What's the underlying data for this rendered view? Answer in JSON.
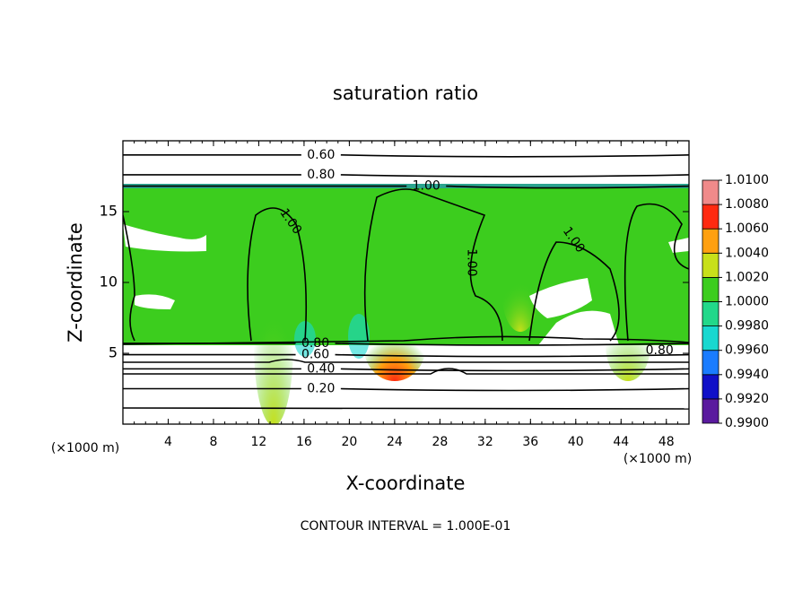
{
  "chart_data": {
    "type": "contour",
    "title": "saturation ratio",
    "x_label": "X-coordinate",
    "y_label": "Z-coordinate",
    "x_unit": "(×1000 m)",
    "y_unit": "(×1000 m)",
    "footer": "CONTOUR INTERVAL = 1.000E-01",
    "xlim": [
      0,
      50
    ],
    "ylim": [
      0,
      20
    ],
    "xticks": [
      4,
      8,
      12,
      16,
      20,
      24,
      28,
      32,
      36,
      40,
      44,
      48
    ],
    "yticks": [
      5,
      10,
      15
    ],
    "colorbar": {
      "ticks": [
        {
          "value": 0.99,
          "label": "0.9900"
        },
        {
          "value": 0.992,
          "label": "0.9920"
        },
        {
          "value": 0.994,
          "label": "0.9940"
        },
        {
          "value": 0.996,
          "label": "0.9960"
        },
        {
          "value": 0.998,
          "label": "0.9980"
        },
        {
          "value": 1.0,
          "label": "1.0000"
        },
        {
          "value": 1.002,
          "label": "1.0020"
        },
        {
          "value": 1.004,
          "label": "1.0040"
        },
        {
          "value": 1.006,
          "label": "1.0060"
        },
        {
          "value": 1.008,
          "label": "1.0080"
        },
        {
          "value": 1.01,
          "label": "1.0100"
        }
      ],
      "colors": [
        "#5a1a9e",
        "#1010c8",
        "#1a7cff",
        "#18d8d0",
        "#22d88a",
        "#3ccd1e",
        "#c8e01a",
        "#ffa010",
        "#ff2a10",
        "#f08a8a"
      ]
    },
    "contours": [
      {
        "level": 0.6,
        "label": "0.60",
        "x": 17.5,
        "z": 19.0
      },
      {
        "level": 0.8,
        "label": "0.80",
        "x": 17.5,
        "z": 17.6
      },
      {
        "level": 1.0,
        "label": "1.00",
        "x": 26.8,
        "z": 16.8
      },
      {
        "level": 0.8,
        "label": "0.80",
        "x": 17.0,
        "z": 5.7
      },
      {
        "level": 0.6,
        "label": "0.60",
        "x": 17.0,
        "z": 4.9
      },
      {
        "level": 0.4,
        "label": "0.40",
        "x": 17.5,
        "z": 3.9
      },
      {
        "level": 0.2,
        "label": "0.20",
        "x": 17.5,
        "z": 2.5
      }
    ],
    "inline_labels": [
      {
        "level": 1.0,
        "label": "1.00",
        "x": 14.8,
        "z": 14.3
      },
      {
        "level": 1.0,
        "label": "1.00",
        "x": 30.8,
        "z": 11.4
      },
      {
        "level": 1.0,
        "label": "1.00",
        "x": 39.8,
        "z": 13.0
      },
      {
        "level": 0.8,
        "label": "0.80",
        "x": 47.4,
        "z": 5.2
      }
    ]
  }
}
